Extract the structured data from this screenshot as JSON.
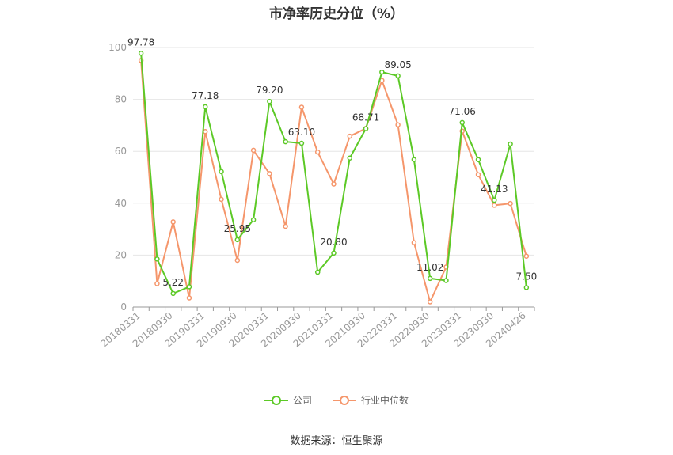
{
  "chart_data": {
    "type": "line",
    "title": "市净率历史分位（%）",
    "ylim": [
      0,
      100
    ],
    "yticks": [
      0,
      20,
      40,
      60,
      80,
      100
    ],
    "x": [
      "20180331",
      "20180630",
      "20180930",
      "20181231",
      "20190331",
      "20190630",
      "20190930",
      "20191231",
      "20200331",
      "20200630",
      "20200930",
      "20201231",
      "20210331",
      "20210630",
      "20210930",
      "20211231",
      "20220331",
      "20220630",
      "20220930",
      "20221231",
      "20230331",
      "20230630",
      "20230930",
      "20231231",
      "20240426"
    ],
    "xtick_labels": [
      "20180331",
      "20180930",
      "20190331",
      "20190930",
      "20200331",
      "20200930",
      "20210331",
      "20210930",
      "20220331",
      "20220930",
      "20230331",
      "20230930",
      "20240426"
    ],
    "grid": true,
    "legend_position": "bottom",
    "series": [
      {
        "name": "公司",
        "color": "#5cc926",
        "values": [
          97.78,
          18.5,
          5.22,
          7.8,
          77.18,
          52.2,
          25.95,
          33.6,
          79.2,
          63.7,
          63.1,
          13.4,
          20.8,
          57.4,
          68.71,
          90.5,
          89.05,
          56.8,
          11.02,
          10.2,
          71.06,
          56.8,
          41.13,
          62.8,
          7.5
        ],
        "labels": [
          "97.78",
          null,
          "5.22",
          null,
          "77.18",
          null,
          "25.95",
          null,
          "79.20",
          null,
          "63.10",
          null,
          "20.80",
          null,
          "68.71",
          null,
          "89.05",
          null,
          "11.02",
          null,
          "71.06",
          null,
          "41.13",
          null,
          "7.50"
        ]
      },
      {
        "name": "行业中位数",
        "color": "#f5966b",
        "values": [
          95.0,
          9.0,
          32.8,
          3.5,
          67.6,
          41.5,
          18.0,
          60.4,
          51.4,
          31.1,
          77.0,
          59.7,
          47.4,
          65.8,
          68.8,
          87.3,
          70.2,
          24.8,
          2.0,
          15.4,
          67.8,
          51.0,
          39.2,
          39.9,
          19.6
        ]
      }
    ]
  },
  "source": "数据来源：恒生聚源"
}
